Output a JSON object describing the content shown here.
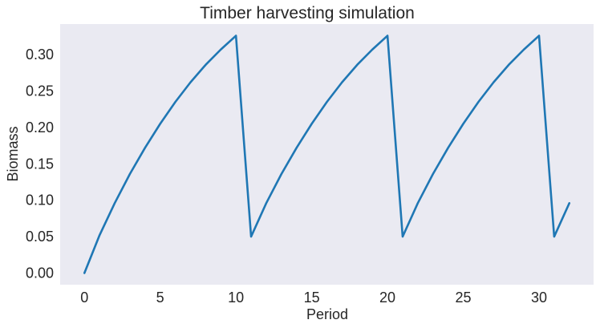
{
  "chart_data": {
    "type": "line",
    "title": "Timber harvesting simulation",
    "xlabel": "Period",
    "ylabel": "Biomass",
    "xlim": [
      -1.6,
      33.6
    ],
    "ylim": [
      -0.016,
      0.342
    ],
    "xticks": [
      0,
      5,
      10,
      15,
      20,
      25,
      30
    ],
    "xtick_labels": [
      "0",
      "5",
      "10",
      "15",
      "20",
      "25",
      "30"
    ],
    "yticks": [
      0.0,
      0.05,
      0.1,
      0.15,
      0.2,
      0.25,
      0.3
    ],
    "ytick_labels": [
      "0.00",
      "0.05",
      "0.10",
      "0.15",
      "0.20",
      "0.25",
      "0.30"
    ],
    "grid": false,
    "series": [
      {
        "x": [
          0,
          1,
          2,
          3,
          4,
          5,
          6,
          7,
          8,
          9,
          10,
          11,
          12,
          13,
          14,
          15,
          16,
          17,
          18,
          19,
          20,
          21,
          22,
          23,
          24,
          25,
          26,
          27,
          28,
          29,
          30,
          31,
          32
        ],
        "y": [
          0.0,
          0.052,
          0.096,
          0.136,
          0.172,
          0.205,
          0.235,
          0.262,
          0.286,
          0.307,
          0.326,
          0.05,
          0.096,
          0.136,
          0.172,
          0.205,
          0.235,
          0.262,
          0.286,
          0.307,
          0.326,
          0.05,
          0.096,
          0.136,
          0.172,
          0.205,
          0.235,
          0.262,
          0.286,
          0.307,
          0.326,
          0.05,
          0.096
        ],
        "color": "#1f77b4"
      }
    ]
  },
  "style": {
    "plot_background": "#eaeaf2",
    "text_color": "#262626"
  }
}
